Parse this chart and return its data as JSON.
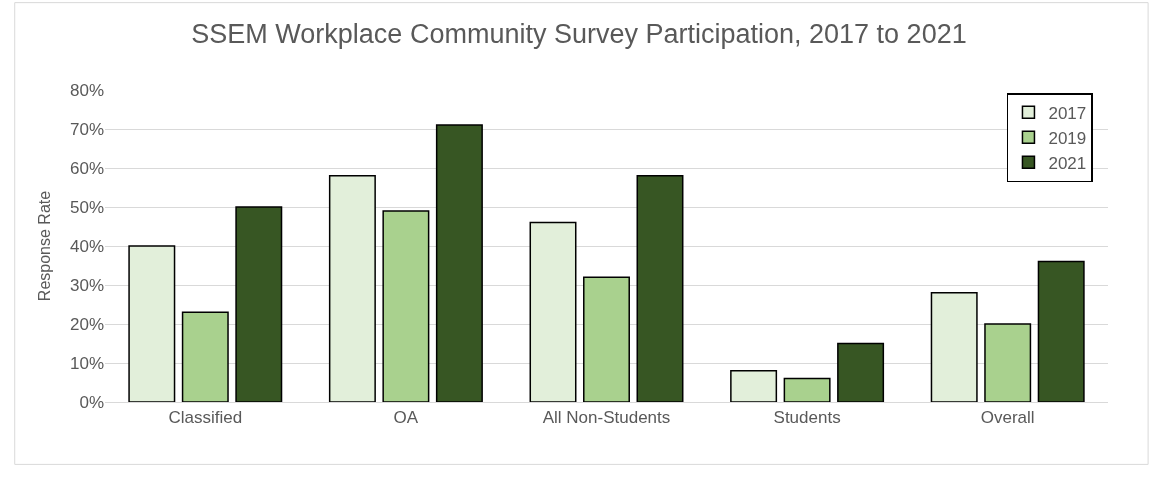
{
  "chart_data": {
    "type": "bar",
    "title": "SSEM Workplace Community Survey Participation, 2017 to 2021",
    "ylabel": "Response Rate",
    "categories": [
      "Classified",
      "OA",
      "All Non-Students",
      "Students",
      "Overall"
    ],
    "series": [
      {
        "name": "2017",
        "color": "#e2efda",
        "values": [
          40,
          58,
          46,
          8,
          28
        ]
      },
      {
        "name": "2019",
        "color": "#a9d18e",
        "values": [
          23,
          49,
          32,
          6,
          20
        ]
      },
      {
        "name": "2021",
        "color": "#375623",
        "values": [
          50,
          71,
          58,
          15,
          36
        ]
      }
    ],
    "ylim": [
      0,
      80
    ],
    "yticks": [
      {
        "value": 0,
        "label": "0%"
      },
      {
        "value": 10,
        "label": "10%"
      },
      {
        "value": 20,
        "label": "20%"
      },
      {
        "value": 30,
        "label": "30%"
      },
      {
        "value": 40,
        "label": "40%"
      },
      {
        "value": 50,
        "label": "50%"
      },
      {
        "value": 60,
        "label": "60%"
      },
      {
        "value": 70,
        "label": "70%"
      },
      {
        "value": 80,
        "label": "80%"
      }
    ],
    "grid": "y",
    "legend": "top right"
  }
}
